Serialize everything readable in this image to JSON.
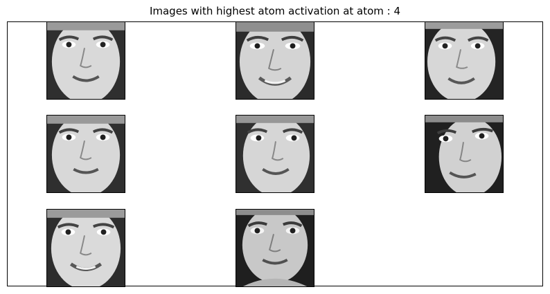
{
  "figure": {
    "title": "Images with highest atom activation at atom : 4"
  },
  "grid": {
    "rows": 3,
    "columns": 3,
    "image_count": 8,
    "image_kind": "grayscale face image"
  },
  "colors": {
    "axes_border": "#000000",
    "background": "#ffffff",
    "image_palette": "grayscale"
  }
}
